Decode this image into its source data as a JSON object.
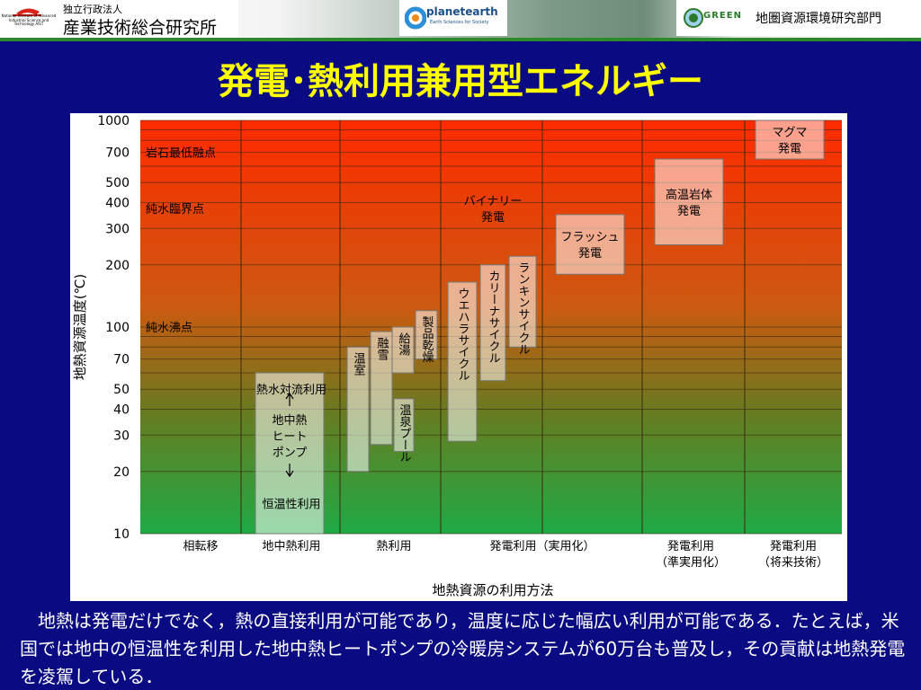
{
  "header": {
    "aist_small_text": "National Institute of Advanced Industrial Science and Technology AIST",
    "aist_subtitle": "独立行政法人",
    "aist_name": "産業技術総合研究所",
    "planet_earth_logo": "planetearth",
    "planet_earth_sub": "Earth Sciences for Society",
    "green_logo": "GREEN",
    "green_name": "地圏資源環境研究部門"
  },
  "slide": {
    "title": "発電･熱利用兼用型エネルギー",
    "caption": "地熱は発電だけでなく，熱の直接利用が可能であり，温度に応じた幅広い利用が可能である．たとえば，米国では地中の恒温性を利用した地中熱ヒートポンプの冷暖房システムが60万台も普及し，その貢献は地熱発電を凌駕している．"
  },
  "colors": {
    "background": "#0a0a82",
    "title": "#ffff00",
    "gradient_top": "#ff2a00",
    "gradient_bottom": "#22aa44",
    "box_fill": "rgba(255,255,255,0.55)"
  },
  "chart_data": {
    "type": "table",
    "ylabel": "地熱資源温度(℃)",
    "xlabel": "地熱資源の利用方法",
    "y_scale": "log",
    "ylim": [
      10,
      1000
    ],
    "y_ticks": [
      1000,
      700,
      500,
      400,
      300,
      200,
      100,
      70,
      50,
      40,
      30,
      20,
      10
    ],
    "reference_points": [
      {
        "label": "岩石最低融点",
        "temp": 700
      },
      {
        "label": "純水臨界点",
        "temp": 374
      },
      {
        "label": "純水沸点",
        "temp": 100
      }
    ],
    "categories": [
      "相転移",
      "地中熱利用",
      "熱利用",
      "発電利用（実用化）",
      "発電利用（準実用化）",
      "発電利用（将来技術）"
    ],
    "applications": [
      {
        "id": "ground-heat",
        "label": "地中熱ヒートポンプ",
        "category": "地中熱利用",
        "temp_min": 10,
        "temp_max": 60
      },
      {
        "id": "hot-water-convection",
        "label": "熱水対流利用",
        "category": "地中熱利用",
        "temp_min": 50,
        "temp_max": 50
      },
      {
        "id": "constant-temp",
        "label": "恒温性利用",
        "category": "地中熱利用",
        "temp_min": 14,
        "temp_max": 14
      },
      {
        "id": "greenhouse",
        "label": "温室",
        "category": "熱利用",
        "temp_min": 20,
        "temp_max": 80
      },
      {
        "id": "snow-melting",
        "label": "融雪",
        "category": "熱利用",
        "temp_min": 27,
        "temp_max": 95
      },
      {
        "id": "hot-spring-pool",
        "label": "温泉プール",
        "category": "熱利用",
        "temp_min": 25,
        "temp_max": 45
      },
      {
        "id": "hot-water-supply",
        "label": "給湯",
        "category": "熱利用",
        "temp_min": 60,
        "temp_max": 100
      },
      {
        "id": "product-drying",
        "label": "製品乾燥",
        "category": "熱利用",
        "temp_min": 70,
        "temp_max": 120
      },
      {
        "id": "uehara-cycle",
        "label": "ウエハラサイクル",
        "category": "発電利用（実用化）",
        "temp_min": 28,
        "temp_max": 165
      },
      {
        "id": "kalina-cycle",
        "label": "カリーナサイクル",
        "category": "発電利用（実用化）",
        "temp_min": 55,
        "temp_max": 200
      },
      {
        "id": "rankine-cycle",
        "label": "ランキンサイクル",
        "category": "発電利用（実用化）",
        "temp_min": 80,
        "temp_max": 220
      },
      {
        "id": "binary-power",
        "label": "バイナリー発電",
        "category": "発電利用（実用化）",
        "temp_min": 220,
        "temp_max": 220
      },
      {
        "id": "flash-power",
        "label": "フラッシュ発電",
        "category": "発電利用（実用化）",
        "temp_min": 180,
        "temp_max": 350
      },
      {
        "id": "hot-dry-rock",
        "label": "高温岩体発電",
        "category": "発電利用（準実用化）",
        "temp_min": 250,
        "temp_max": 650
      },
      {
        "id": "magma-power",
        "label": "マグマ発電",
        "category": "発電利用（将来技術）",
        "temp_min": 650,
        "temp_max": 1000
      }
    ]
  }
}
